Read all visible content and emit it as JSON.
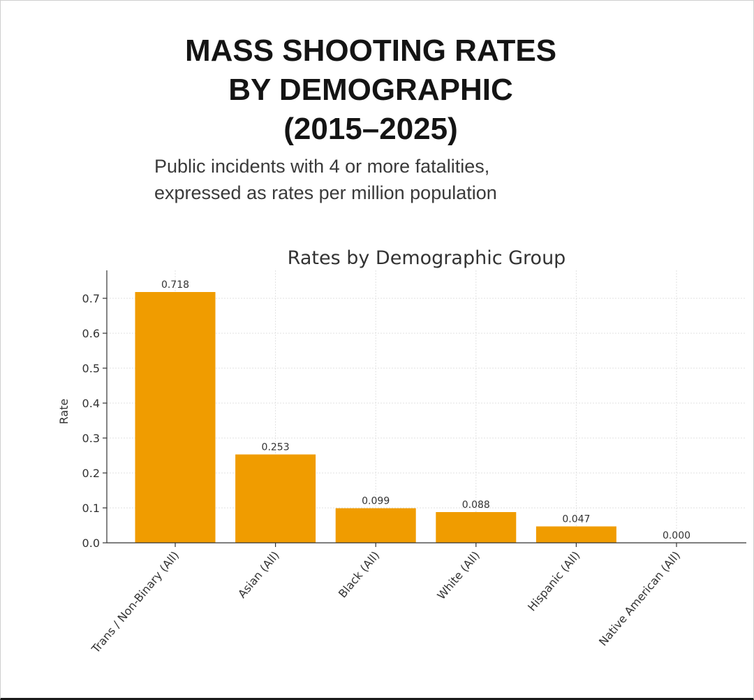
{
  "header": {
    "title_lines": [
      "MASS SHOOTING RATES",
      "BY DEMOGRAPHIC",
      "(2015–2025)"
    ],
    "subtitle_lines": [
      "Public incidents with 4 or more fatalities,",
      "expressed as rates per million population"
    ]
  },
  "chart_data": {
    "type": "bar",
    "title": "Rates by Demographic Group",
    "xlabel": "",
    "ylabel": "Rate",
    "categories": [
      "Trans / Non-Binary (All)",
      "Asian (All)",
      "Black (All)",
      "White (All)",
      "Hispanic (All)",
      "Native American (All)"
    ],
    "values": [
      0.718,
      0.253,
      0.099,
      0.088,
      0.047,
      0.0
    ],
    "value_labels": [
      "0.718",
      "0.253",
      "0.099",
      "0.088",
      "0.047",
      "0.000"
    ],
    "ylim": [
      0,
      0.78
    ],
    "yticks": [
      0.0,
      0.1,
      0.2,
      0.3,
      0.4,
      0.5,
      0.6,
      0.7
    ],
    "ytick_labels": [
      "0.0",
      "0.1",
      "0.2",
      "0.3",
      "0.4",
      "0.5",
      "0.6",
      "0.7"
    ],
    "bar_color": "#F09C00",
    "grid": true,
    "legend": "none"
  }
}
